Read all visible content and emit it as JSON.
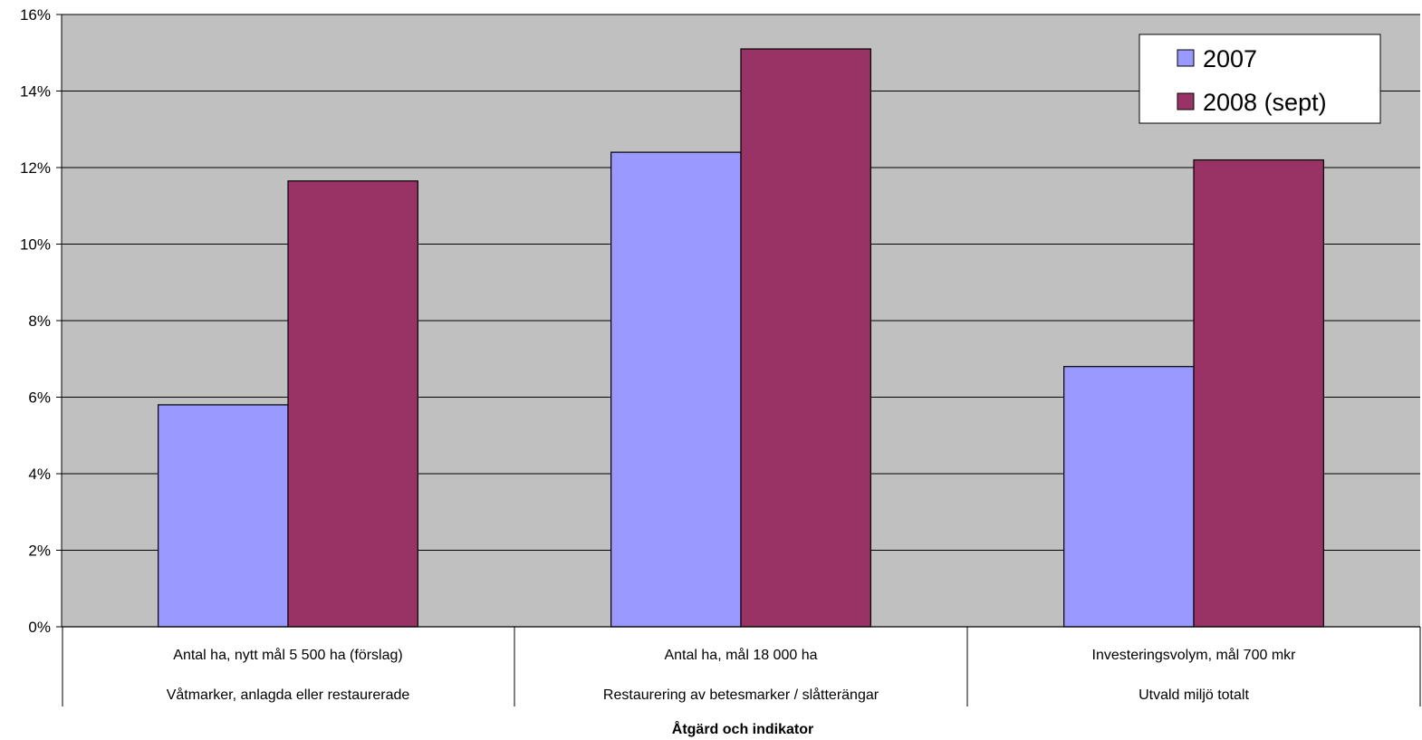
{
  "chart_data": {
    "type": "bar",
    "categories": [
      {
        "line1": "Antal ha, nytt mål 5 500 ha (förslag)",
        "line2": "Våtmarker, anlagda eller restaurerade"
      },
      {
        "line1": "Antal ha, mål 18 000 ha",
        "line2": "Restaurering av betesmarker / slåtterängar"
      },
      {
        "line1": "Investeringsvolym, mål 700 mkr",
        "line2": "Utvald miljö totalt"
      }
    ],
    "series": [
      {
        "name": "2007",
        "values": [
          5.8,
          12.4,
          6.8
        ],
        "color": "#9999ff"
      },
      {
        "name": "2008 (sept)",
        "values": [
          11.65,
          15.1,
          12.2
        ],
        "color": "#993366"
      }
    ],
    "y_ticks": [
      "0%",
      "2%",
      "4%",
      "6%",
      "8%",
      "10%",
      "12%",
      "14%",
      "16%"
    ],
    "ylim": [
      0,
      16
    ],
    "xlabel": "Åtgärd och indikator",
    "ylabel": "",
    "grid": true,
    "plot_background": "#c0c0c0",
    "legend_position": "top-right"
  }
}
